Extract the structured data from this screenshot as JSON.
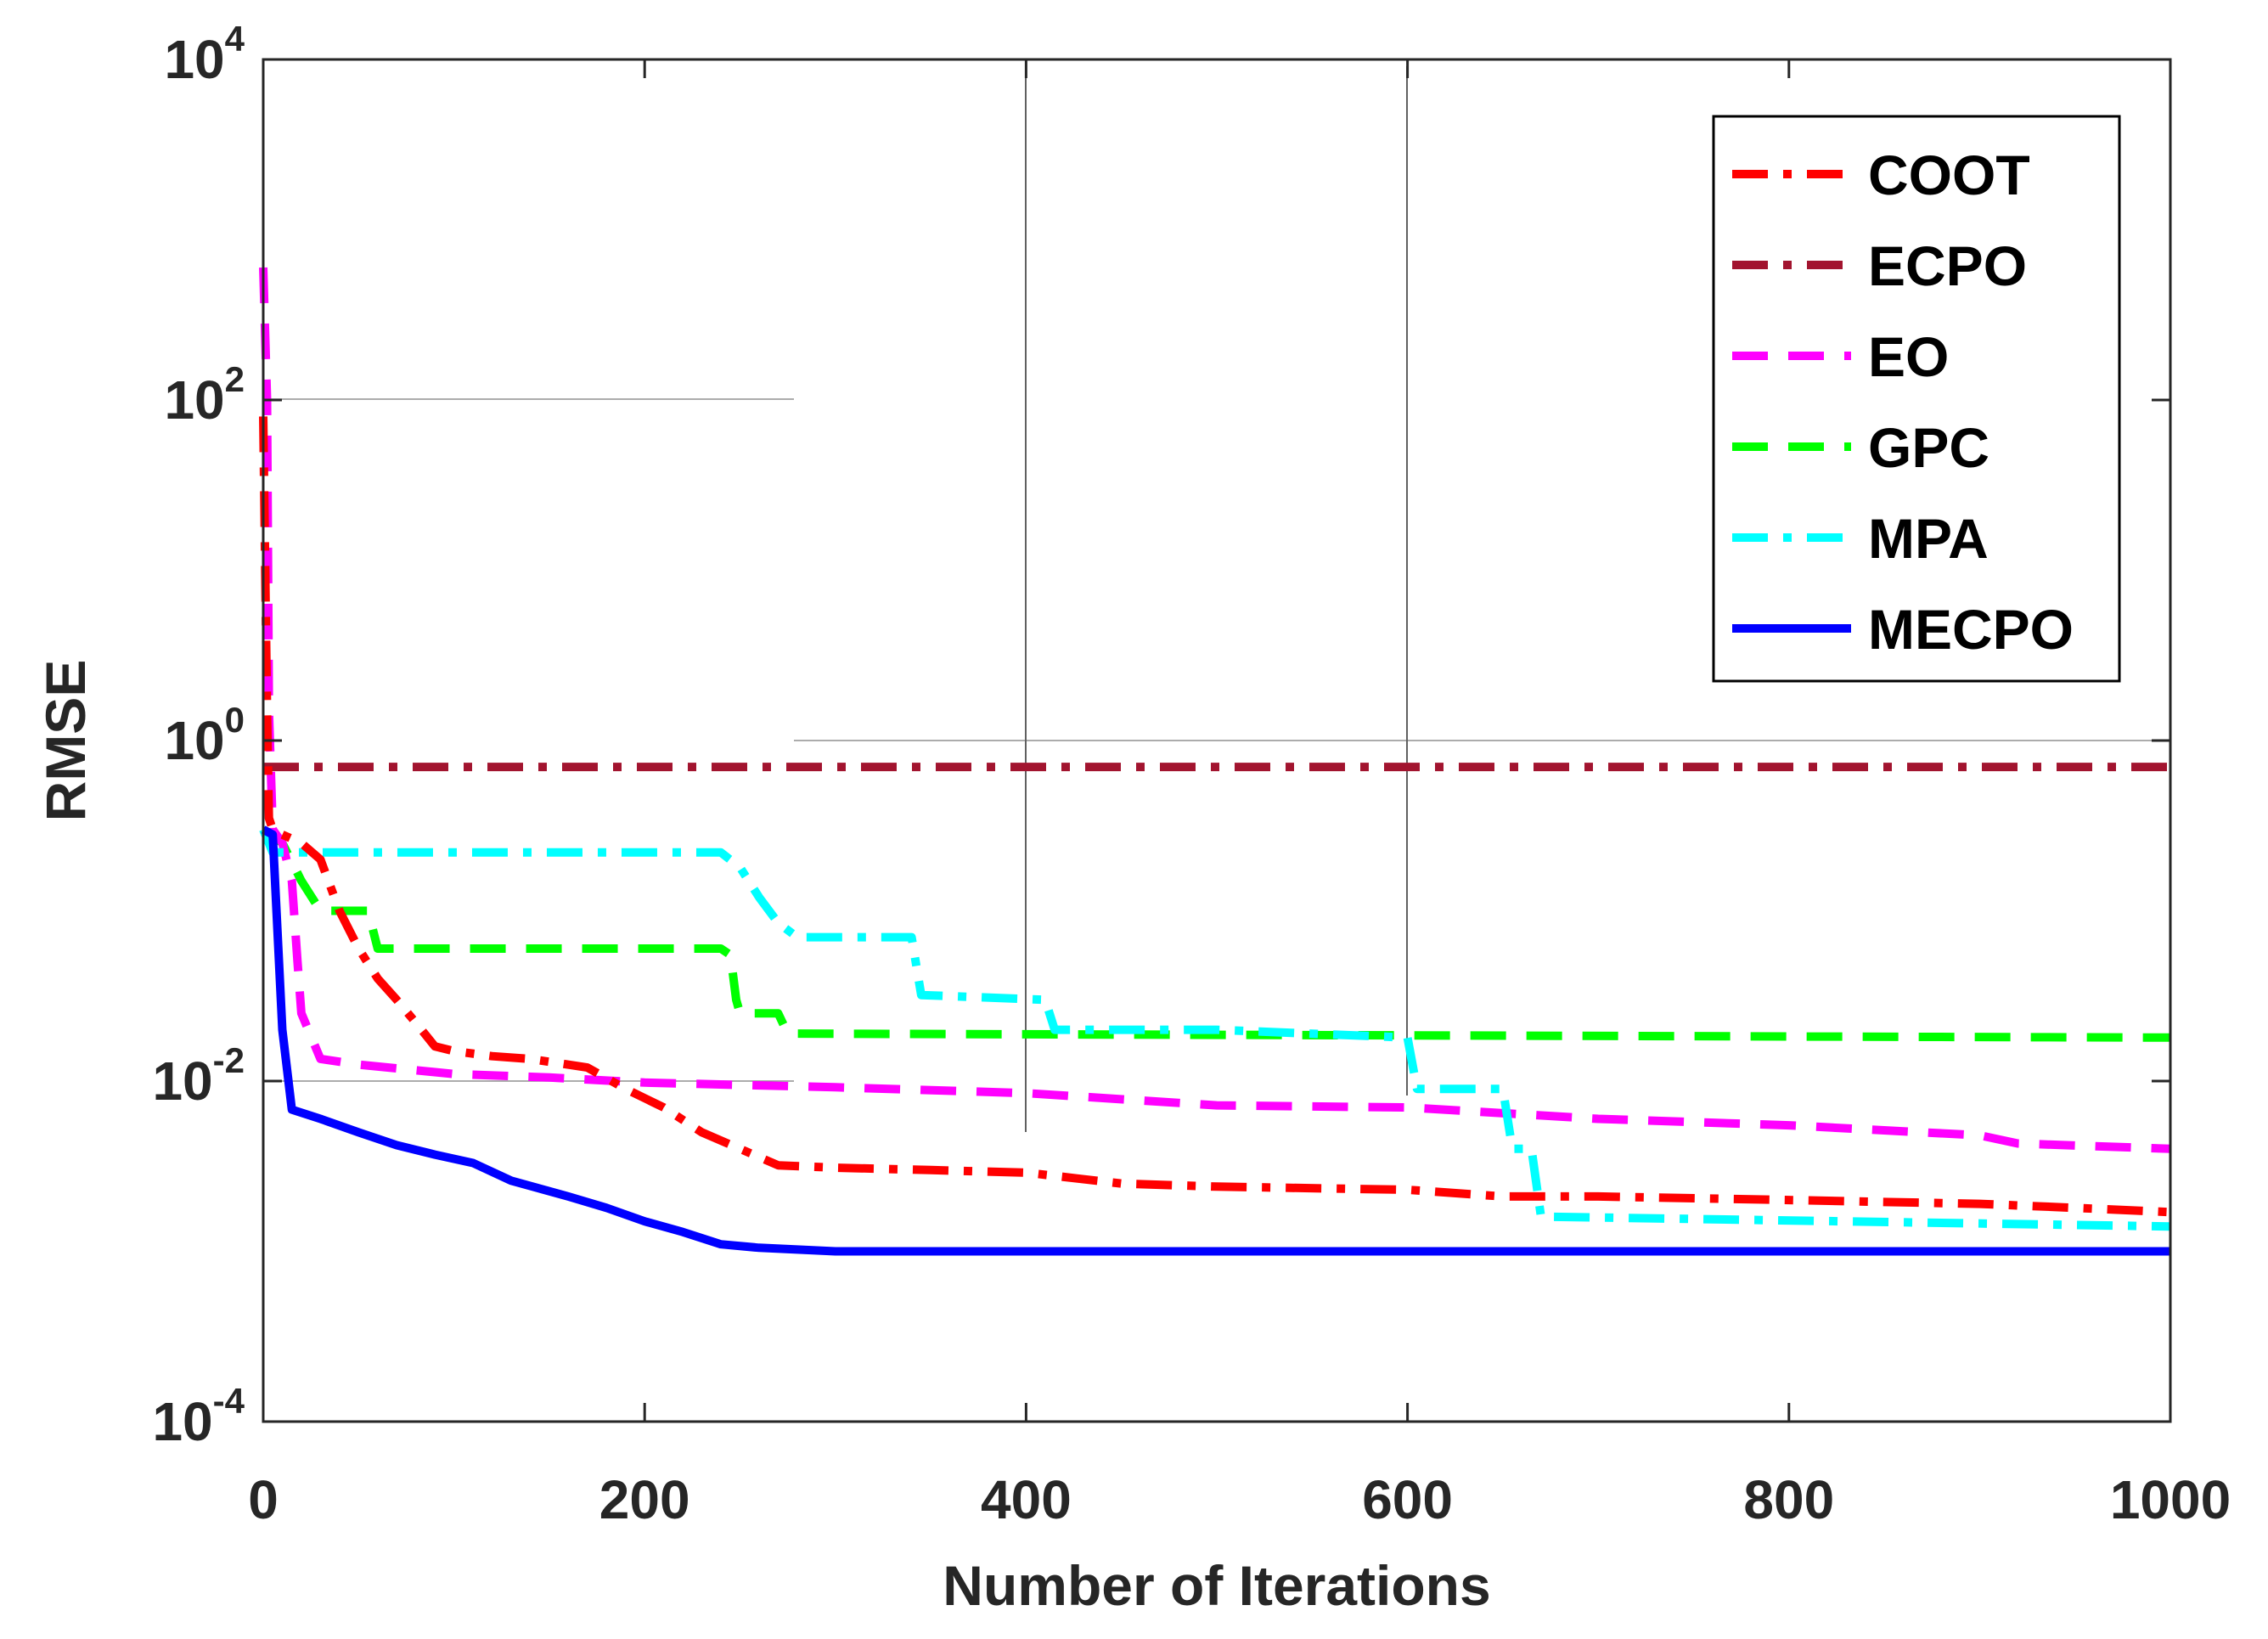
{
  "chart_data": {
    "type": "line",
    "title": "",
    "xlabel": "Number of Iterations",
    "ylabel": "RMSE",
    "xlim": [
      0,
      1000
    ],
    "ylim": [
      0.0001,
      10000
    ],
    "yscale": "log",
    "x_ticks": [
      0,
      200,
      400,
      600,
      800,
      1000
    ],
    "x_tick_labels": [
      "0",
      "200",
      "400",
      "600",
      "800",
      "1000"
    ],
    "y_ticks": [
      0.0001,
      0.01,
      1,
      100,
      10000
    ],
    "y_tick_labels": [
      {
        "base": "10",
        "exp": "-4"
      },
      {
        "base": "10",
        "exp": "-2"
      },
      {
        "base": "10",
        "exp": "0"
      },
      {
        "base": "10",
        "exp": "2"
      },
      {
        "base": "10",
        "exp": "4"
      }
    ],
    "grid": true,
    "legend_position": "top-right",
    "series": [
      {
        "name": "COOT",
        "color": "#ff0000",
        "dash": "dashdot",
        "points": [
          [
            0,
            80
          ],
          [
            2,
            1.5
          ],
          [
            3,
            0.35
          ],
          [
            5,
            0.3
          ],
          [
            10,
            0.28
          ],
          [
            20,
            0.25
          ],
          [
            30,
            0.2
          ],
          [
            40,
            0.1
          ],
          [
            50,
            0.06
          ],
          [
            60,
            0.04
          ],
          [
            70,
            0.03
          ],
          [
            80,
            0.022
          ],
          [
            90,
            0.016
          ],
          [
            100,
            0.015
          ],
          [
            120,
            0.014
          ],
          [
            140,
            0.0135
          ],
          [
            170,
            0.012
          ],
          [
            190,
            0.009
          ],
          [
            210,
            0.007
          ],
          [
            230,
            0.005
          ],
          [
            250,
            0.004
          ],
          [
            270,
            0.0032
          ],
          [
            300,
            0.0031
          ],
          [
            350,
            0.003
          ],
          [
            400,
            0.0029
          ],
          [
            450,
            0.0025
          ],
          [
            500,
            0.0024
          ],
          [
            600,
            0.0023
          ],
          [
            650,
            0.0021
          ],
          [
            700,
            0.0021
          ],
          [
            800,
            0.002
          ],
          [
            900,
            0.0019
          ],
          [
            950,
            0.0018
          ],
          [
            1000,
            0.0017
          ]
        ]
      },
      {
        "name": "ECPO",
        "color": "#a2142f",
        "dash": "dashdot",
        "points": [
          [
            0,
            0.7
          ],
          [
            1000,
            0.7
          ]
        ]
      },
      {
        "name": "EO",
        "color": "#ff00ff",
        "dash": "dash",
        "points": [
          [
            0,
            600
          ],
          [
            2,
            100
          ],
          [
            3,
            1.5
          ],
          [
            5,
            0.3
          ],
          [
            10,
            0.25
          ],
          [
            15,
            0.15
          ],
          [
            18,
            0.05
          ],
          [
            20,
            0.025
          ],
          [
            30,
            0.0135
          ],
          [
            50,
            0.0125
          ],
          [
            100,
            0.011
          ],
          [
            150,
            0.0105
          ],
          [
            200,
            0.0098
          ],
          [
            300,
            0.0092
          ],
          [
            400,
            0.0085
          ],
          [
            500,
            0.0072
          ],
          [
            600,
            0.007
          ],
          [
            700,
            0.006
          ],
          [
            800,
            0.0055
          ],
          [
            900,
            0.0048
          ],
          [
            920,
            0.0043
          ],
          [
            1000,
            0.004
          ]
        ]
      },
      {
        "name": "GPC",
        "color": "#00ff00",
        "dash": "dash",
        "points": [
          [
            0,
            0.3
          ],
          [
            10,
            0.25
          ],
          [
            20,
            0.15
          ],
          [
            30,
            0.1
          ],
          [
            40,
            0.1
          ],
          [
            55,
            0.1
          ],
          [
            60,
            0.06
          ],
          [
            240,
            0.06
          ],
          [
            245,
            0.055
          ],
          [
            248,
            0.03
          ],
          [
            250,
            0.025
          ],
          [
            270,
            0.025
          ],
          [
            275,
            0.019
          ],
          [
            1000,
            0.018
          ]
        ]
      },
      {
        "name": "MPA",
        "color": "#00ffff",
        "dash": "dashdot",
        "points": [
          [
            0,
            0.3
          ],
          [
            5,
            0.22
          ],
          [
            240,
            0.22
          ],
          [
            250,
            0.18
          ],
          [
            260,
            0.12
          ],
          [
            270,
            0.085
          ],
          [
            280,
            0.07
          ],
          [
            340,
            0.07
          ],
          [
            345,
            0.032
          ],
          [
            410,
            0.03
          ],
          [
            415,
            0.02
          ],
          [
            500,
            0.02
          ],
          [
            600,
            0.018
          ],
          [
            605,
            0.009
          ],
          [
            650,
            0.009
          ],
          [
            655,
            0.004
          ],
          [
            665,
            0.004
          ],
          [
            670,
            0.0016
          ],
          [
            1000,
            0.0014
          ]
        ]
      },
      {
        "name": "MECPO",
        "color": "#0000ff",
        "dash": "solid",
        "points": [
          [
            0,
            0.3
          ],
          [
            5,
            0.28
          ],
          [
            10,
            0.02
          ],
          [
            15,
            0.0068
          ],
          [
            30,
            0.006
          ],
          [
            50,
            0.005
          ],
          [
            70,
            0.0042
          ],
          [
            90,
            0.0037
          ],
          [
            110,
            0.0033
          ],
          [
            130,
            0.0026
          ],
          [
            160,
            0.0021
          ],
          [
            180,
            0.0018
          ],
          [
            200,
            0.0015
          ],
          [
            220,
            0.0013
          ],
          [
            240,
            0.0011
          ],
          [
            260,
            0.00105
          ],
          [
            300,
            0.001
          ],
          [
            1000,
            0.001
          ]
        ]
      }
    ]
  }
}
